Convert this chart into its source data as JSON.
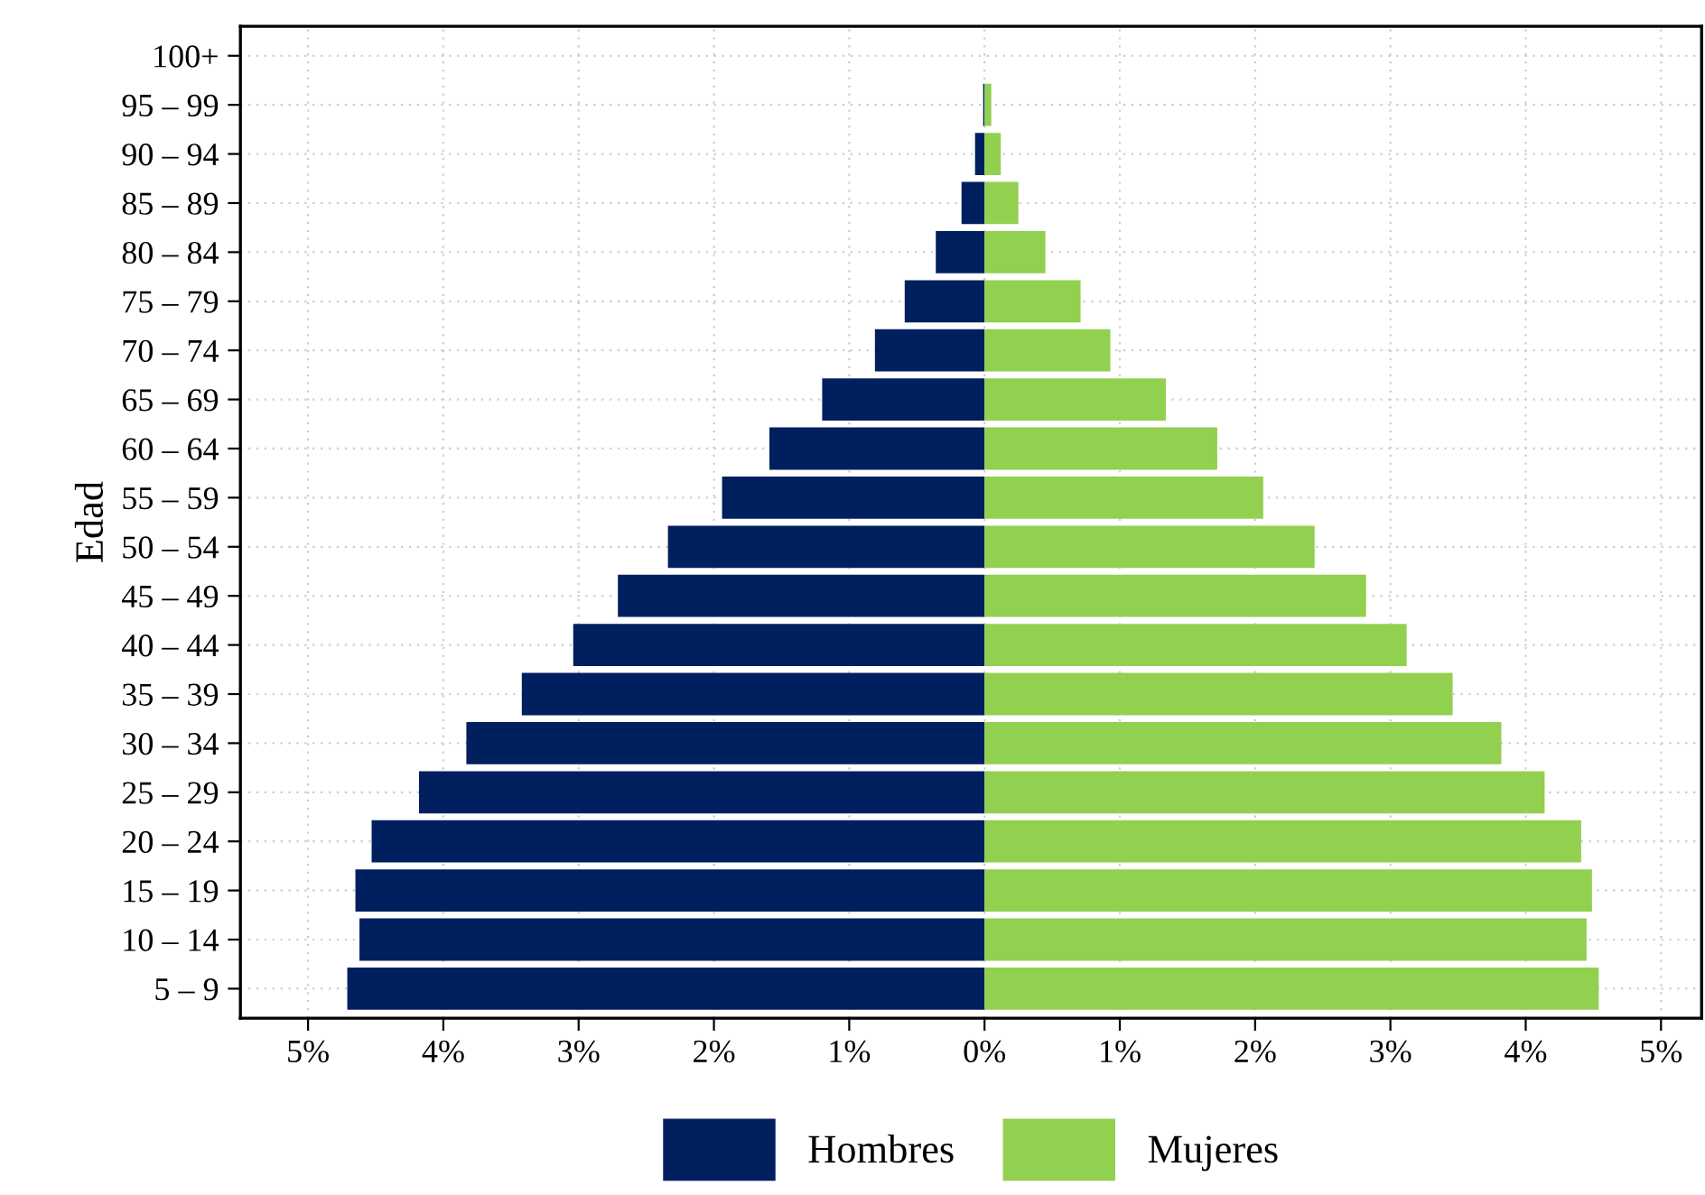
{
  "chart_data": {
    "type": "bar",
    "orientation": "horizontal",
    "ylabel": "Edad",
    "categories": [
      "100+",
      "95 – 99",
      "90 – 94",
      "85 – 89",
      "80 – 84",
      "75 – 79",
      "70 – 74",
      "65 – 69",
      "60 – 64",
      "55 – 59",
      "50 – 54",
      "45 – 49",
      "40 – 44",
      "35 – 39",
      "30 – 34",
      "25 – 29",
      "20 – 24",
      "15 – 19",
      "10 – 14",
      "5 – 9"
    ],
    "series": [
      {
        "name": "Hombres",
        "color": "#001f5f",
        "values": [
          0,
          -0.01,
          -0.07,
          -0.17,
          -0.36,
          -0.59,
          -0.81,
          -1.2,
          -1.59,
          -1.94,
          -2.34,
          -2.71,
          -3.04,
          -3.42,
          -3.83,
          -4.18,
          -4.53,
          -4.65,
          -4.62,
          -4.71
        ]
      },
      {
        "name": "Mujeres",
        "color": "#92d050",
        "values": [
          0,
          0.05,
          0.12,
          0.25,
          0.45,
          0.71,
          0.93,
          1.34,
          1.72,
          2.06,
          2.44,
          2.82,
          3.12,
          3.46,
          3.82,
          4.14,
          4.41,
          4.49,
          4.45,
          4.54
        ]
      }
    ],
    "xlim": [
      -5.5,
      5.3
    ],
    "xticks": [
      {
        "value": -5,
        "label": "5%"
      },
      {
        "value": -4,
        "label": "4%"
      },
      {
        "value": -3,
        "label": "3%"
      },
      {
        "value": -2,
        "label": "2%"
      },
      {
        "value": -1,
        "label": "1%"
      },
      {
        "value": 0,
        "label": "0%"
      },
      {
        "value": 1,
        "label": "1%"
      },
      {
        "value": 2,
        "label": "2%"
      },
      {
        "value": 3,
        "label": "3%"
      },
      {
        "value": 4,
        "label": "4%"
      },
      {
        "value": 5,
        "label": "5%"
      }
    ],
    "stacked": true,
    "grid": true,
    "legend": "bottom"
  }
}
